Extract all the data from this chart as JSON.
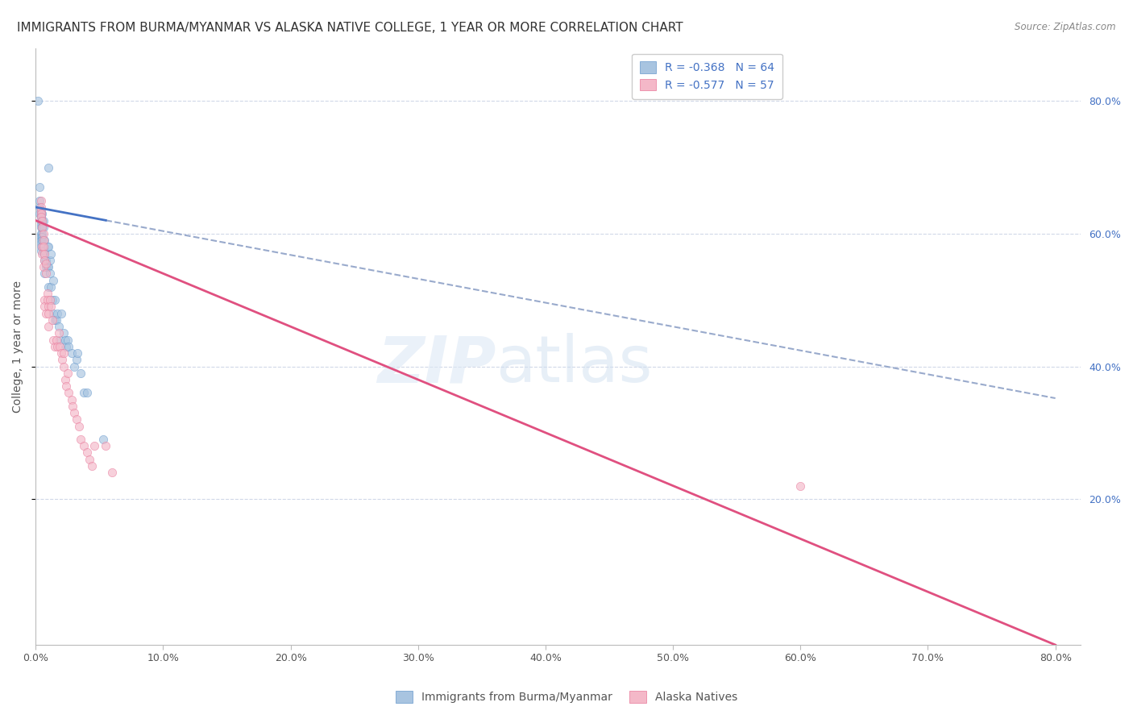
{
  "title": "IMMIGRANTS FROM BURMA/MYANMAR VS ALASKA NATIVE COLLEGE, 1 YEAR OR MORE CORRELATION CHART",
  "source": "Source: ZipAtlas.com",
  "ylabel": "College, 1 year or more",
  "right_ytick_vals": [
    0.2,
    0.4,
    0.6,
    0.8
  ],
  "footer_labels": [
    "Immigrants from Burma/Myanmar",
    "Alaska Natives"
  ],
  "blue_scatter": [
    [
      0.002,
      0.8
    ],
    [
      0.01,
      0.7
    ],
    [
      0.003,
      0.67
    ],
    [
      0.003,
      0.65
    ],
    [
      0.003,
      0.64
    ],
    [
      0.003,
      0.63
    ],
    [
      0.004,
      0.63
    ],
    [
      0.004,
      0.625
    ],
    [
      0.004,
      0.62
    ],
    [
      0.004,
      0.615
    ],
    [
      0.004,
      0.61
    ],
    [
      0.004,
      0.6
    ],
    [
      0.004,
      0.595
    ],
    [
      0.004,
      0.59
    ],
    [
      0.004,
      0.585
    ],
    [
      0.004,
      0.58
    ],
    [
      0.004,
      0.575
    ],
    [
      0.005,
      0.63
    ],
    [
      0.005,
      0.62
    ],
    [
      0.005,
      0.61
    ],
    [
      0.005,
      0.6
    ],
    [
      0.005,
      0.595
    ],
    [
      0.005,
      0.59
    ],
    [
      0.006,
      0.62
    ],
    [
      0.006,
      0.61
    ],
    [
      0.006,
      0.57
    ],
    [
      0.007,
      0.59
    ],
    [
      0.007,
      0.575
    ],
    [
      0.007,
      0.56
    ],
    [
      0.007,
      0.54
    ],
    [
      0.008,
      0.56
    ],
    [
      0.008,
      0.55
    ],
    [
      0.009,
      0.58
    ],
    [
      0.009,
      0.55
    ],
    [
      0.01,
      0.58
    ],
    [
      0.01,
      0.55
    ],
    [
      0.01,
      0.52
    ],
    [
      0.011,
      0.56
    ],
    [
      0.011,
      0.54
    ],
    [
      0.012,
      0.57
    ],
    [
      0.012,
      0.52
    ],
    [
      0.013,
      0.5
    ],
    [
      0.014,
      0.53
    ],
    [
      0.014,
      0.48
    ],
    [
      0.015,
      0.5
    ],
    [
      0.015,
      0.47
    ],
    [
      0.016,
      0.47
    ],
    [
      0.017,
      0.48
    ],
    [
      0.018,
      0.46
    ],
    [
      0.019,
      0.44
    ],
    [
      0.02,
      0.48
    ],
    [
      0.022,
      0.45
    ],
    [
      0.023,
      0.44
    ],
    [
      0.024,
      0.43
    ],
    [
      0.025,
      0.44
    ],
    [
      0.026,
      0.43
    ],
    [
      0.028,
      0.42
    ],
    [
      0.03,
      0.4
    ],
    [
      0.032,
      0.41
    ],
    [
      0.033,
      0.42
    ],
    [
      0.035,
      0.39
    ],
    [
      0.038,
      0.36
    ],
    [
      0.04,
      0.36
    ],
    [
      0.053,
      0.29
    ]
  ],
  "pink_scatter": [
    [
      0.004,
      0.65
    ],
    [
      0.004,
      0.64
    ],
    [
      0.004,
      0.635
    ],
    [
      0.004,
      0.63
    ],
    [
      0.004,
      0.625
    ],
    [
      0.005,
      0.62
    ],
    [
      0.005,
      0.61
    ],
    [
      0.005,
      0.58
    ],
    [
      0.005,
      0.57
    ],
    [
      0.006,
      0.6
    ],
    [
      0.006,
      0.59
    ],
    [
      0.006,
      0.58
    ],
    [
      0.006,
      0.55
    ],
    [
      0.007,
      0.57
    ],
    [
      0.007,
      0.56
    ],
    [
      0.007,
      0.5
    ],
    [
      0.007,
      0.49
    ],
    [
      0.008,
      0.555
    ],
    [
      0.008,
      0.54
    ],
    [
      0.008,
      0.48
    ],
    [
      0.009,
      0.51
    ],
    [
      0.009,
      0.5
    ],
    [
      0.01,
      0.49
    ],
    [
      0.01,
      0.48
    ],
    [
      0.01,
      0.46
    ],
    [
      0.011,
      0.5
    ],
    [
      0.012,
      0.49
    ],
    [
      0.013,
      0.47
    ],
    [
      0.014,
      0.44
    ],
    [
      0.015,
      0.43
    ],
    [
      0.016,
      0.44
    ],
    [
      0.017,
      0.43
    ],
    [
      0.018,
      0.45
    ],
    [
      0.019,
      0.43
    ],
    [
      0.02,
      0.42
    ],
    [
      0.021,
      0.41
    ],
    [
      0.022,
      0.42
    ],
    [
      0.022,
      0.4
    ],
    [
      0.023,
      0.38
    ],
    [
      0.024,
      0.37
    ],
    [
      0.025,
      0.39
    ],
    [
      0.026,
      0.36
    ],
    [
      0.028,
      0.35
    ],
    [
      0.029,
      0.34
    ],
    [
      0.03,
      0.33
    ],
    [
      0.032,
      0.32
    ],
    [
      0.034,
      0.31
    ],
    [
      0.035,
      0.29
    ],
    [
      0.038,
      0.28
    ],
    [
      0.04,
      0.27
    ],
    [
      0.042,
      0.26
    ],
    [
      0.044,
      0.25
    ],
    [
      0.046,
      0.28
    ],
    [
      0.055,
      0.28
    ],
    [
      0.06,
      0.24
    ],
    [
      0.6,
      0.22
    ]
  ],
  "blue_line_x": [
    0.0,
    0.8
  ],
  "blue_line_intercept": 0.64,
  "blue_line_slope": -0.36,
  "pink_line_x": [
    0.0,
    0.8
  ],
  "pink_line_intercept": 0.62,
  "pink_line_slope": -0.8,
  "dashed_line_x": [
    0.3,
    0.8
  ],
  "dashed_intercept": 0.64,
  "dashed_slope": -0.36,
  "xlim": [
    0.0,
    0.82
  ],
  "ylim": [
    -0.02,
    0.88
  ],
  "xtick_vals": [
    0.0,
    0.1,
    0.2,
    0.3,
    0.4,
    0.5,
    0.6,
    0.7,
    0.8
  ],
  "background_color": "#ffffff",
  "grid_color": "#d0d8e8",
  "scatter_alpha": 0.65,
  "scatter_size": 55,
  "title_fontsize": 11,
  "axis_fontsize": 10,
  "tick_color": "#4472c4"
}
